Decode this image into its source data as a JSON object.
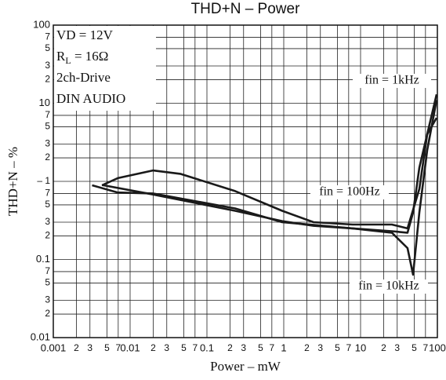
{
  "chart_data": {
    "type": "line",
    "title": "THD+N – Power",
    "xlabel": "Power – mW",
    "ylabel": "THD+N – %",
    "xscale": "log",
    "yscale": "log",
    "grid": true,
    "xlim": [
      0.001,
      100
    ],
    "ylim": [
      0.01,
      100
    ],
    "xticks": [
      0.001,
      {
        "value": 0.002,
        "label": "2"
      },
      {
        "value": 0.003,
        "label": "3"
      },
      {
        "value": 0.005,
        "label": "5"
      },
      {
        "value": 0.007,
        "label": "7"
      },
      0.01,
      {
        "value": 0.02,
        "label": "2"
      },
      {
        "value": 0.03,
        "label": "3"
      },
      {
        "value": 0.05,
        "label": "5"
      },
      {
        "value": 0.07,
        "label": "7"
      },
      0.1,
      {
        "value": 0.2,
        "label": "2"
      },
      {
        "value": 0.3,
        "label": "3"
      },
      {
        "value": 0.5,
        "label": "5"
      },
      {
        "value": 0.7,
        "label": "7"
      },
      1,
      {
        "value": 2,
        "label": "2"
      },
      {
        "value": 3,
        "label": "3"
      },
      {
        "value": 5,
        "label": "5"
      },
      {
        "value": 7,
        "label": "7"
      },
      10,
      {
        "value": 20,
        "label": "2"
      },
      {
        "value": 30,
        "label": "3"
      },
      {
        "value": 50,
        "label": "5"
      },
      {
        "value": 70,
        "label": "7"
      },
      100
    ],
    "yticks": [
      0.01,
      {
        "value": 0.02,
        "label": "2"
      },
      {
        "value": 0.03,
        "label": "3"
      },
      {
        "value": 0.05,
        "label": "5"
      },
      {
        "value": 0.07,
        "label": "7"
      },
      0.1,
      {
        "value": 0.2,
        "label": "2"
      },
      {
        "value": 0.3,
        "label": "3"
      },
      {
        "value": 0.5,
        "label": "5"
      },
      {
        "value": 0.7,
        "label": "7"
      },
      {
        "value": 1,
        "label": "– 1"
      },
      {
        "value": 2,
        "label": "2"
      },
      {
        "value": 3,
        "label": "3"
      },
      {
        "value": 5,
        "label": "5"
      },
      {
        "value": 7,
        "label": "7"
      },
      10,
      {
        "value": 20,
        "label": "2"
      },
      {
        "value": 30,
        "label": "3"
      },
      {
        "value": 50,
        "label": "5"
      },
      {
        "value": 70,
        "label": "7"
      },
      100
    ],
    "conditions": [
      "VD = 12V",
      {
        "main": "R",
        "sub": "L",
        "rest": " = 16Ω"
      },
      "2ch-Drive",
      "DIN AUDIO"
    ],
    "series": [
      {
        "name": "fin = 1kHz",
        "color": "#1a1a1a",
        "x": [
          0.0043,
          0.0069,
          0.0198,
          0.045,
          0.233,
          0.955,
          2.44,
          7.9,
          25.6,
          40.9,
          58.2,
          73.6,
          97.7
        ],
        "values": [
          0.89,
          1.1,
          1.38,
          1.25,
          0.75,
          0.42,
          0.3,
          0.28,
          0.28,
          0.25,
          0.8,
          4,
          13
        ]
      },
      {
        "name": "fin = 100Hz",
        "color": "#1a1a1a",
        "x": [
          0.0032,
          0.0069,
          0.0198,
          0.233,
          0.955,
          7.9,
          25.6,
          40.9,
          48.3,
          58.2,
          73.6,
          97.7
        ],
        "values": [
          0.89,
          0.72,
          0.7,
          0.45,
          0.3,
          0.25,
          0.23,
          0.22,
          0.4,
          1.5,
          4,
          6.5
        ]
      },
      {
        "name": "fin = 10kHz",
        "color": "#1a1a1a",
        "x": [
          0.0043,
          0.0198,
          0.233,
          0.955,
          2.44,
          7.9,
          25.6,
          40.9,
          48.3,
          58.2,
          73.6,
          97.7
        ],
        "values": [
          0.9,
          0.68,
          0.42,
          0.31,
          0.27,
          0.25,
          0.22,
          0.14,
          0.064,
          0.4,
          2.5,
          11
        ]
      }
    ]
  }
}
